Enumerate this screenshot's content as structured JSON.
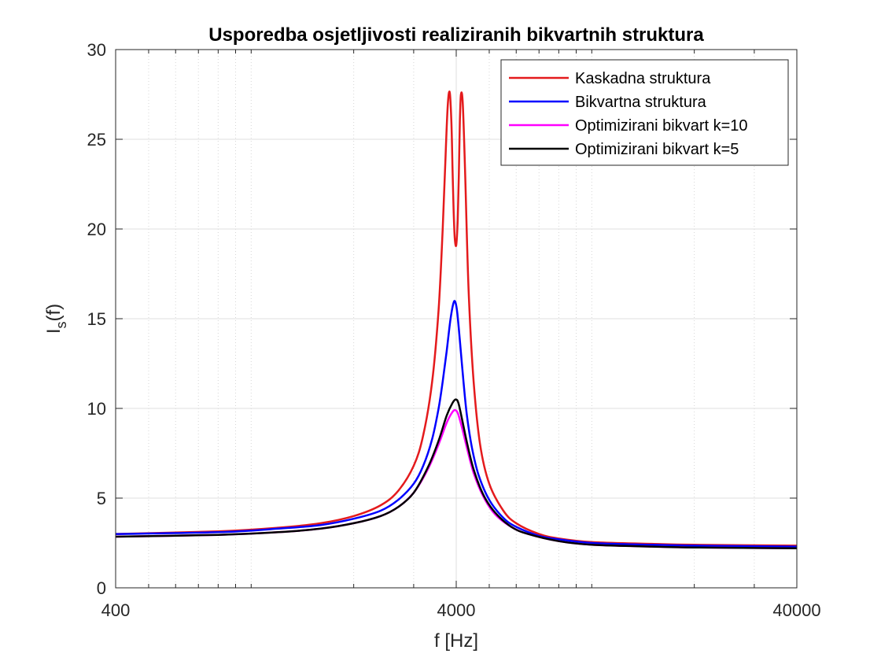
{
  "chart_data": {
    "type": "line",
    "title": "Usporedba osjetljivosti realiziranih bikvartnih struktura",
    "xlabel": "f [Hz]",
    "ylabel": "I",
    "ylabel_sub": "s",
    "ylabel_suffix": "(f)",
    "x_scale": "log",
    "xlim": [
      400,
      40000
    ],
    "ylim": [
      0,
      30
    ],
    "x_ticks": [
      {
        "value": 400,
        "label": "400"
      },
      {
        "value": 4000,
        "label": "4000"
      },
      {
        "value": 40000,
        "label": "40000"
      }
    ],
    "y_ticks": [
      {
        "value": 0,
        "label": "0"
      },
      {
        "value": 5,
        "label": "5"
      },
      {
        "value": 10,
        "label": "10"
      },
      {
        "value": 15,
        "label": "15"
      },
      {
        "value": 20,
        "label": "20"
      },
      {
        "value": 25,
        "label": "25"
      },
      {
        "value": 30,
        "label": "30"
      }
    ],
    "grid": true,
    "minor_grid_x": true,
    "legend_position": "top-right",
    "series": [
      {
        "name": "Kaskadna struktura",
        "color": "#e41a1c",
        "x": [
          400,
          800,
          1200,
          1600,
          2000,
          2400,
          2700,
          3000,
          3200,
          3400,
          3550,
          3650,
          3720,
          3780,
          3830,
          3870,
          3900,
          3930,
          3960,
          4000,
          4040,
          4070,
          4100,
          4130,
          4180,
          4250,
          4350,
          4500,
          4700,
          5000,
          5500,
          6000,
          7000,
          8000,
          10000,
          15000,
          20000,
          40000
        ],
        "y": [
          3.0,
          3.15,
          3.35,
          3.6,
          4.0,
          4.6,
          5.4,
          6.8,
          8.5,
          11.5,
          15.5,
          20.0,
          24.0,
          27.0,
          27.6,
          26.0,
          23.5,
          21.0,
          19.5,
          19.1,
          20.5,
          23.0,
          26.0,
          27.5,
          27.0,
          23.0,
          16.5,
          11.5,
          8.0,
          5.8,
          4.3,
          3.6,
          3.0,
          2.75,
          2.55,
          2.45,
          2.4,
          2.35
        ]
      },
      {
        "name": "Bikvartna struktura",
        "color": "#0000ff",
        "x": [
          400,
          800,
          1200,
          1600,
          2000,
          2400,
          2700,
          3000,
          3200,
          3400,
          3550,
          3650,
          3750,
          3850,
          3930,
          3980,
          4030,
          4100,
          4200,
          4300,
          4450,
          4650,
          5000,
          5500,
          6000,
          7000,
          8000,
          10000,
          15000,
          20000,
          40000
        ],
        "y": [
          3.0,
          3.1,
          3.3,
          3.5,
          3.85,
          4.3,
          4.9,
          5.8,
          6.8,
          8.3,
          10.0,
          11.5,
          13.2,
          15.0,
          15.9,
          15.9,
          15.3,
          13.8,
          11.5,
          9.6,
          7.8,
          6.3,
          4.9,
          3.9,
          3.4,
          2.9,
          2.7,
          2.5,
          2.4,
          2.35,
          2.3
        ]
      },
      {
        "name": "Optimizirani bikvart k=10",
        "color": "#ff00ff",
        "x": [
          400,
          800,
          1200,
          1600,
          2000,
          2400,
          2700,
          3000,
          3300,
          3550,
          3750,
          3900,
          3980,
          4050,
          4150,
          4300,
          4500,
          4800,
          5200,
          5800,
          6500,
          8000,
          10000,
          15000,
          20000,
          40000
        ],
        "y": [
          2.85,
          2.95,
          3.1,
          3.3,
          3.6,
          4.0,
          4.5,
          5.3,
          6.6,
          8.0,
          9.2,
          9.8,
          9.9,
          9.7,
          9.0,
          7.8,
          6.4,
          5.1,
          4.1,
          3.4,
          3.0,
          2.6,
          2.4,
          2.3,
          2.25,
          2.2
        ]
      },
      {
        "name": "Optimizirani bikvart k=5",
        "color": "#000000",
        "x": [
          400,
          800,
          1200,
          1600,
          2000,
          2400,
          2700,
          3000,
          3300,
          3550,
          3750,
          3900,
          3990,
          4060,
          4150,
          4300,
          4500,
          4800,
          5200,
          5800,
          6500,
          8000,
          10000,
          15000,
          20000,
          40000
        ],
        "y": [
          2.85,
          2.95,
          3.1,
          3.3,
          3.6,
          4.0,
          4.5,
          5.3,
          6.7,
          8.2,
          9.6,
          10.3,
          10.5,
          10.3,
          9.5,
          8.1,
          6.6,
          5.2,
          4.2,
          3.4,
          3.0,
          2.6,
          2.4,
          2.3,
          2.25,
          2.2
        ]
      }
    ]
  }
}
